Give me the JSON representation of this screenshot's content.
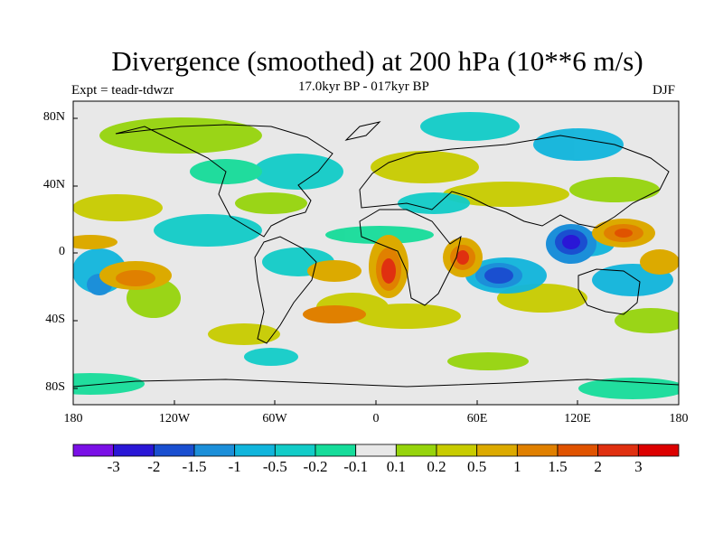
{
  "title": "Divergence (smoothed) at 200 hPa (10**6 m/s)",
  "experiment": "Expt = teadr-tdwzr",
  "period": "17.0kyr BP - 017kyr BP",
  "season": "DJF",
  "axes": {
    "lat_labels": [
      "80N",
      "40N",
      "0",
      "40S",
      "80S"
    ],
    "lon_labels": [
      "180",
      "120W",
      "60W",
      "0",
      "60E",
      "120E",
      "180"
    ]
  },
  "colorbar": {
    "labels": [
      "-3",
      "-2",
      "-1.5",
      "-1",
      "-0.5",
      "-0.2",
      "-0.1",
      "0.1",
      "0.2",
      "0.5",
      "1",
      "1.5",
      "2",
      "3"
    ],
    "colors": [
      "#7a10e6",
      "#2a17d6",
      "#1a4fd0",
      "#1c8fd9",
      "#11b5dc",
      "#12ccc8",
      "#16dc9a",
      "#e8e8e8",
      "#96d40c",
      "#c8cc00",
      "#dcaa00",
      "#e08000",
      "#e05300",
      "#e03010",
      "#dc0000"
    ]
  },
  "colors": {
    "background": "#e8e8e8",
    "coast": "#000000"
  },
  "chart_data": {
    "type": "filled-contour-map",
    "title": "Divergence (smoothed) at 200 hPa (10**6 m/s)",
    "lon_range": [
      -180,
      180
    ],
    "lat_range": [
      -90,
      90
    ],
    "levels": [
      -3,
      -2,
      -1.5,
      -1,
      -0.5,
      -0.2,
      -0.1,
      0.1,
      0.2,
      0.5,
      1,
      1.5,
      2,
      3
    ],
    "notable_features": [
      {
        "lon": 112,
        "lat": 5,
        "value": -3,
        "label": "strong convergence over Maritime Continent / SE Asia"
      },
      {
        "lon": 72,
        "lat": -12,
        "value": -2,
        "label": "convergence over Indian Ocean"
      },
      {
        "lon": 10,
        "lat": -8,
        "value": 2,
        "label": "divergence over Gulf of Guinea / W Africa"
      },
      {
        "lon": 48,
        "lat": -2,
        "value": 2,
        "label": "divergence over East Africa"
      },
      {
        "lon": 148,
        "lat": 10,
        "value": 1.5,
        "label": "divergence over W Pacific"
      },
      {
        "lon": -150,
        "lat": -12,
        "value": 1.5,
        "label": "divergence over central Pacific"
      },
      {
        "lon": -40,
        "lat": -20,
        "value": 1,
        "label": "divergence over South America / Atlantic"
      }
    ]
  }
}
